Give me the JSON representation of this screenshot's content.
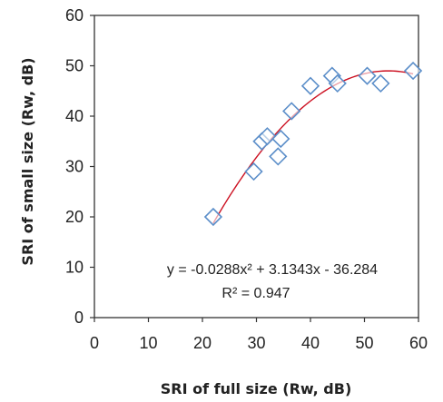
{
  "chart_data": {
    "type": "scatter",
    "xlabel": "SRI of full size (Rw, dB)",
    "ylabel": "SRI of small size (Rw, dB)",
    "xlim": [
      0,
      60
    ],
    "ylim": [
      0,
      60
    ],
    "xticks": [
      "0",
      "10",
      "20",
      "30",
      "40",
      "50",
      "60"
    ],
    "yticks": [
      "0",
      "10",
      "20",
      "30",
      "40",
      "50",
      "60"
    ],
    "grid": false,
    "series": [
      {
        "marker": "diamond",
        "marker_color": "#5b8ec9",
        "points": [
          {
            "x": 22,
            "y": 20
          },
          {
            "x": 29.5,
            "y": 29
          },
          {
            "x": 31,
            "y": 35
          },
          {
            "x": 32,
            "y": 36
          },
          {
            "x": 34,
            "y": 32
          },
          {
            "x": 34.5,
            "y": 35.5
          },
          {
            "x": 36.5,
            "y": 41
          },
          {
            "x": 40,
            "y": 46
          },
          {
            "x": 44,
            "y": 48
          },
          {
            "x": 45,
            "y": 46.5
          },
          {
            "x": 50.5,
            "y": 48
          },
          {
            "x": 53,
            "y": 46.5
          },
          {
            "x": 59,
            "y": 49
          }
        ]
      }
    ],
    "trendline": {
      "type": "polynomial",
      "color": "#cc1122",
      "coefficients": [
        -0.0288,
        3.1343,
        -36.284
      ],
      "x_range": [
        22,
        59
      ],
      "equation": "y = -0.0288x² + 3.1343x - 36.284",
      "r_squared": "R² = 0.947"
    }
  }
}
